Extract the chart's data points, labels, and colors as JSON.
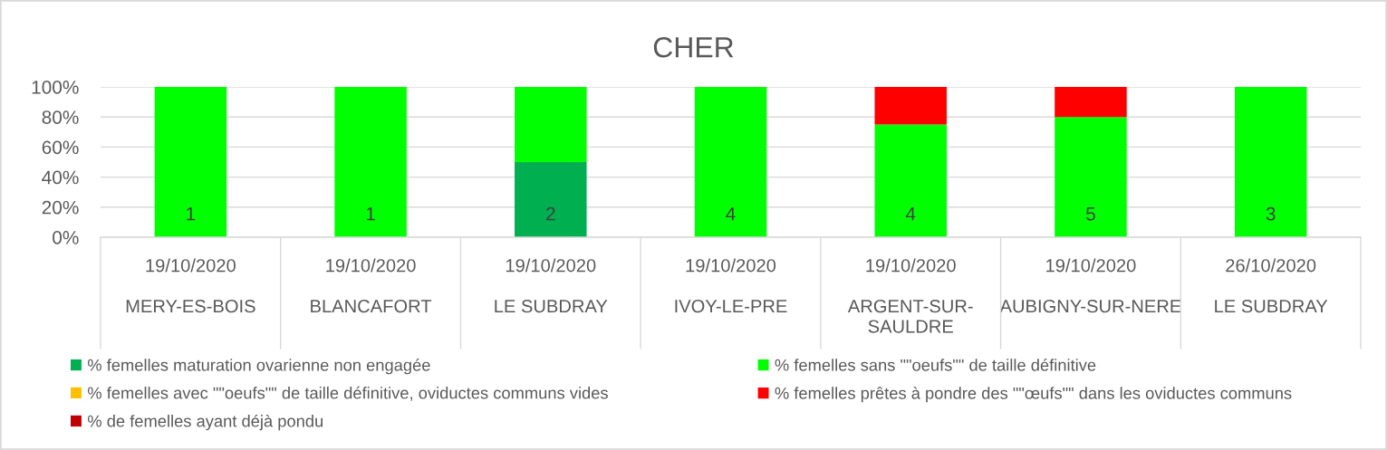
{
  "chart_data": {
    "type": "bar",
    "title": "CHER",
    "stacked": true,
    "categories": [
      "19/10/2020\nMERY-ES-BOIS",
      "19/10/2020\nBLANCAFORT",
      "19/10/2020\nLE SUBDRAY",
      "19/10/2020\nIVOY-LE-PRE",
      "19/10/2020\nARGENT-SUR-\nSAULDRE",
      "19/10/2020\nAUBIGNY-SUR-NERE",
      "26/10/2020\nLE SUBDRAY"
    ],
    "series": [
      {
        "name": "% femelles maturation ovarienne non engagée",
        "color": "#00b050",
        "values": [
          0,
          0,
          50,
          0,
          0,
          0,
          0
        ]
      },
      {
        "name": "% femelles sans \"\"oeufs\"\" de taille définitive",
        "color": "#00ff00",
        "values": [
          100,
          100,
          50,
          100,
          75,
          80,
          100
        ]
      },
      {
        "name": "% femelles avec \"\"oeufs\"\" de taille définitive, oviductes communs vides",
        "color": "#ffc000",
        "values": [
          0,
          0,
          0,
          0,
          0,
          0,
          0
        ]
      },
      {
        "name": "% femelles prêtes à pondre des \"\"œufs\"\" dans les oviductes communs",
        "color": "#ff0000",
        "values": [
          0,
          0,
          0,
          0,
          25,
          20,
          0
        ]
      },
      {
        "name": "% de femelles ayant déjà pondu",
        "color": "#c00000",
        "values": [
          0,
          0,
          0,
          0,
          0,
          0,
          0
        ]
      }
    ],
    "ylim": [
      0,
      100
    ],
    "yticks": [
      {
        "value": 0,
        "label": "0%"
      },
      {
        "value": 20,
        "label": "20%"
      },
      {
        "value": 40,
        "label": "40%"
      },
      {
        "value": 60,
        "label": "60%"
      },
      {
        "value": 80,
        "label": "80%"
      },
      {
        "value": 100,
        "label": "100%"
      }
    ],
    "grid": "y",
    "legend": "bottom",
    "annotations": [
      "1",
      "1",
      "2",
      "4",
      "4",
      "5",
      "3"
    ]
  }
}
